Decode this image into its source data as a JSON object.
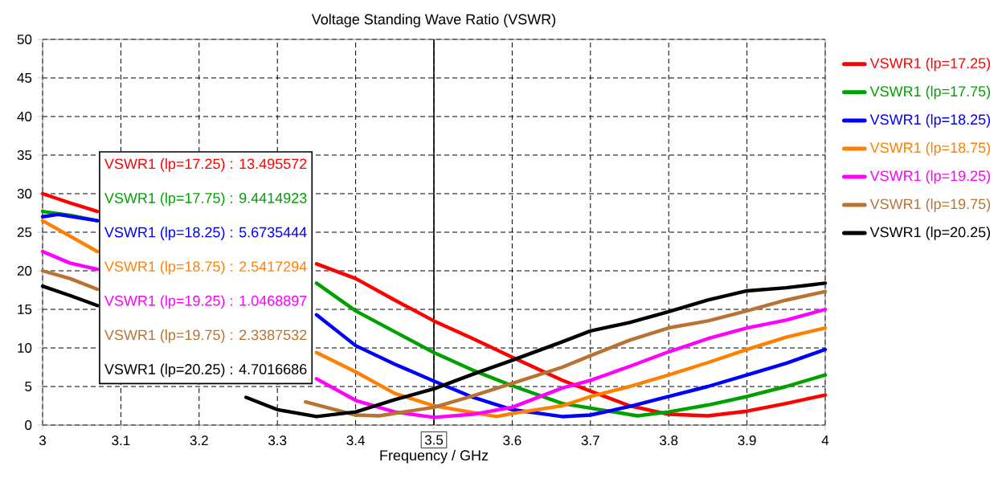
{
  "chart_data": {
    "type": "line",
    "title": "Voltage Standing Wave Ratio (VSWR)",
    "xlabel": "Frequency / GHz",
    "xlim": [
      3,
      4
    ],
    "ylim": [
      0,
      50
    ],
    "xticks": [
      3,
      3.1,
      3.2,
      3.3,
      3.4,
      {
        "value": 3.5,
        "label": null
      },
      3.6,
      3.7,
      3.8,
      3.9,
      4
    ],
    "yticks": [
      0,
      5,
      10,
      15,
      20,
      25,
      30,
      35,
      40,
      45,
      50
    ],
    "grid": true,
    "legend": "right",
    "line_style": "solid",
    "ref_lines": [
      {
        "axis": "x",
        "value": 3.5,
        "label": "3.5",
        "color": "#000000"
      }
    ],
    "series": [
      {
        "name": "VSWR1 (lp=17.25)",
        "color": "#ff0000",
        "x": [
          3,
          3.035,
          3.07,
          3.2,
          3.35,
          3.4,
          3.45,
          3.5,
          3.55,
          3.6,
          3.664,
          3.7,
          3.75,
          3.8,
          3.85,
          3.9,
          3.95,
          4.0
        ],
        "values": [
          30,
          28.8,
          27.7,
          null,
          20.9,
          19.0,
          16.2,
          13.5,
          11.2,
          8.8,
          5.8,
          4.4,
          2.5,
          1.4,
          1.2,
          1.8,
          2.8,
          3.9
        ]
      },
      {
        "name": "VSWR1 (lp=17.75)",
        "color": "#00a000",
        "x": [
          3,
          3.035,
          3.07,
          3.2,
          3.35,
          3.4,
          3.45,
          3.5,
          3.55,
          3.6,
          3.664,
          3.7,
          3.76,
          3.8,
          3.85,
          3.9,
          3.95,
          4.0
        ],
        "values": [
          27.7,
          27.2,
          26.5,
          null,
          18.4,
          14.8,
          12.1,
          9.4,
          7.1,
          5.1,
          2.8,
          2.2,
          1.2,
          1.7,
          2.6,
          3.7,
          5.0,
          6.5
        ]
      },
      {
        "name": "VSWR1 (lp=18.25)",
        "color": "#0000ff",
        "x": [
          3,
          3.02,
          3.07,
          3.2,
          3.35,
          3.4,
          3.45,
          3.5,
          3.55,
          3.6,
          3.664,
          3.7,
          3.75,
          3.8,
          3.85,
          3.9,
          3.95,
          4.0
        ],
        "values": [
          27.0,
          27.3,
          26.5,
          null,
          14.3,
          10.3,
          7.9,
          5.7,
          3.6,
          2.0,
          1.1,
          1.3,
          2.4,
          3.7,
          5.0,
          6.5,
          8.0,
          9.8
        ]
      },
      {
        "name": "VSWR1 (lp=18.75)",
        "color": "#ff8000",
        "x": [
          3,
          3.035,
          3.07,
          3.2,
          3.35,
          3.4,
          3.45,
          3.5,
          3.58,
          3.6,
          3.664,
          3.7,
          3.75,
          3.8,
          3.85,
          3.9,
          3.95,
          4.0
        ],
        "values": [
          26.5,
          24.5,
          22.5,
          null,
          9.4,
          6.9,
          4.1,
          2.5,
          1.1,
          1.5,
          2.5,
          3.7,
          5.0,
          6.5,
          8.1,
          9.8,
          11.4,
          12.6
        ]
      },
      {
        "name": "VSWR1 (lp=19.25)",
        "color": "#ff00ff",
        "x": [
          3,
          3.035,
          3.07,
          3.2,
          3.35,
          3.4,
          3.45,
          3.5,
          3.55,
          3.6,
          3.664,
          3.7,
          3.75,
          3.8,
          3.85,
          3.9,
          3.95,
          4.0
        ],
        "values": [
          22.5,
          21.0,
          20.2,
          null,
          6.0,
          3.2,
          1.7,
          1.0,
          1.4,
          2.3,
          4.8,
          5.8,
          7.6,
          9.5,
          11.2,
          12.6,
          13.6,
          15.0
        ]
      },
      {
        "name": "VSWR1 (lp=19.75)",
        "color": "#b87333",
        "x": [
          3,
          3.035,
          3.07,
          3.2,
          3.336,
          3.4,
          3.43,
          3.5,
          3.55,
          3.6,
          3.664,
          3.7,
          3.75,
          3.8,
          3.85,
          3.9,
          3.95,
          4.0
        ],
        "values": [
          20.0,
          19.0,
          17.6,
          null,
          3.0,
          1.3,
          1.2,
          2.3,
          3.8,
          5.4,
          7.5,
          9.0,
          11.0,
          12.6,
          13.5,
          14.8,
          16.2,
          17.3
        ]
      },
      {
        "name": "VSWR1 (lp=20.25)",
        "color": "#000000",
        "x": [
          3,
          3.035,
          3.07,
          3.2,
          3.26,
          3.3,
          3.35,
          3.4,
          3.45,
          3.5,
          3.55,
          3.6,
          3.664,
          3.7,
          3.75,
          3.8,
          3.85,
          3.9,
          3.95,
          4.0
        ],
        "values": [
          18.0,
          16.8,
          15.5,
          null,
          3.6,
          2.0,
          1.1,
          1.7,
          3.3,
          4.7,
          6.6,
          8.4,
          10.8,
          12.2,
          13.3,
          14.7,
          16.2,
          17.4,
          17.8,
          18.4
        ]
      }
    ],
    "annotations": [
      "VSWR1 (lp=17.25) : 13.495572",
      "VSWR1 (lp=17.75) : 9.4414923",
      "VSWR1 (lp=18.25) : 5.6735444",
      "VSWR1 (lp=18.75) : 2.5417294",
      "VSWR1 (lp=19.25) : 1.0468897",
      "VSWR1 (lp=19.75) : 2.3387532",
      "VSWR1 (lp=20.25) : 4.7016686"
    ]
  }
}
